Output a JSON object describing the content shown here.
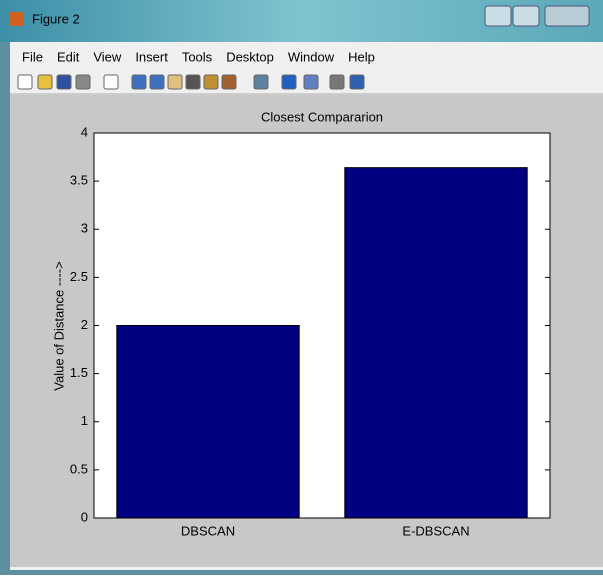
{
  "window": {
    "title": "Figure 2",
    "menu": [
      "File",
      "Edit",
      "View",
      "Insert",
      "Tools",
      "Desktop",
      "Window",
      "Help"
    ]
  },
  "chart_data": {
    "type": "bar",
    "title": "Closest Compararion",
    "ylabel": "Value of Distance ---->",
    "categories": [
      "DBSCAN",
      "E-DBSCAN"
    ],
    "values": [
      2,
      3.64
    ],
    "color": "#000080",
    "ylim": [
      0,
      4
    ],
    "yticks": [
      0,
      0.5,
      1,
      1.5,
      2,
      2.5,
      3,
      3.5,
      4
    ]
  }
}
